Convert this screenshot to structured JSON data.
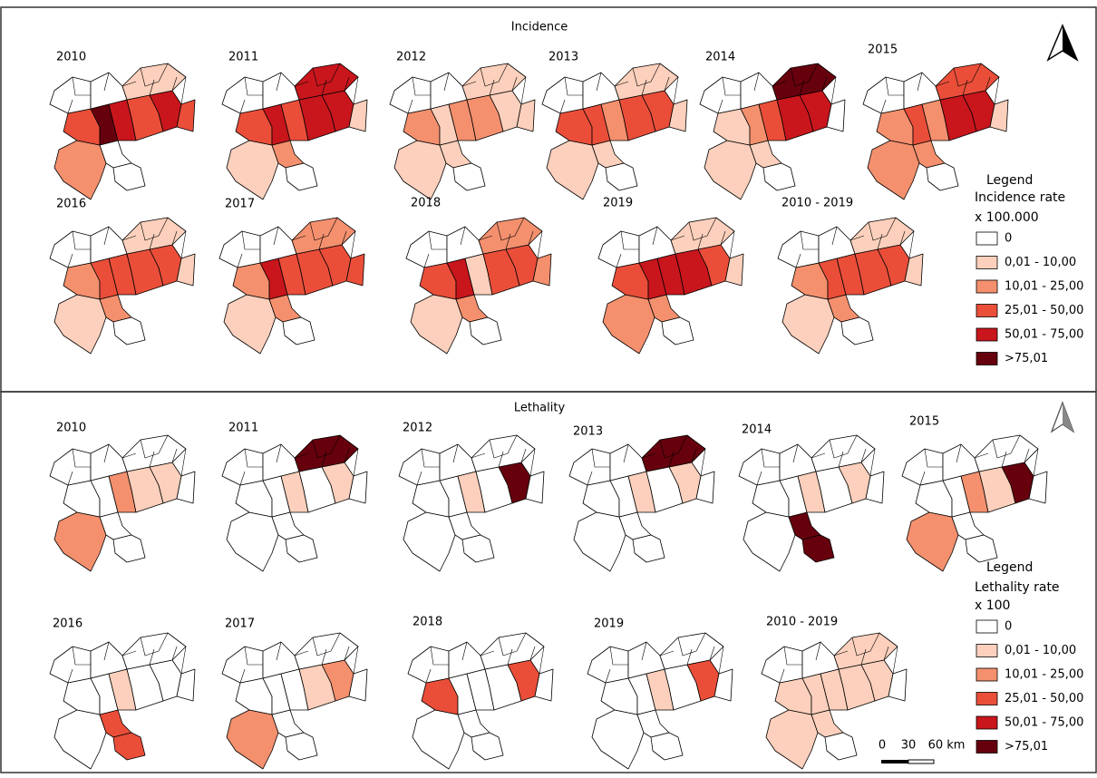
{
  "panels": [
    {
      "title": "Incidence",
      "years": [
        "2010",
        "2011",
        "2012",
        "2013",
        "2014",
        "2015",
        "2016",
        "2017",
        "2018",
        "2019",
        "2010 - 2019"
      ],
      "legend": {
        "heading": "Legend",
        "title": "Incidence rate",
        "unit": "x 100.000",
        "items": [
          {
            "label": "0",
            "color": "#ffffff"
          },
          {
            "label": "0,01 - 10,00",
            "color": "#fcd0bc"
          },
          {
            "label": "10,01 - 25,00",
            "color": "#f4906e"
          },
          {
            "label": "25,01 - 50,00",
            "color": "#ea4e39"
          },
          {
            "label": "50,01 - 75,00",
            "color": "#c8161c"
          },
          {
            "label": ">75,01",
            "color": "#67000d"
          }
        ]
      }
    },
    {
      "title": "Lethality",
      "years": [
        "2010",
        "2011",
        "2012",
        "2013",
        "2014",
        "2015",
        "2016",
        "2017",
        "2018",
        "2019",
        "2010 - 2019"
      ],
      "legend": {
        "heading": "Legend",
        "title": "Lethality rate",
        "unit": "x 100",
        "items": [
          {
            "label": "0",
            "color": "#ffffff"
          },
          {
            "label": "0,01 - 10,00",
            "color": "#fcd0bc"
          },
          {
            "label": "10,01 - 25,00",
            "color": "#f4906e"
          },
          {
            "label": "25,01 - 50,00",
            "color": "#ea4e39"
          },
          {
            "label": "50,01 - 75,00",
            "color": "#c8161c"
          },
          {
            "label": ">75,01",
            "color": "#67000d"
          }
        ]
      }
    }
  ],
  "scale_bar": {
    "labels": [
      "0",
      "30",
      "60 km"
    ]
  }
}
